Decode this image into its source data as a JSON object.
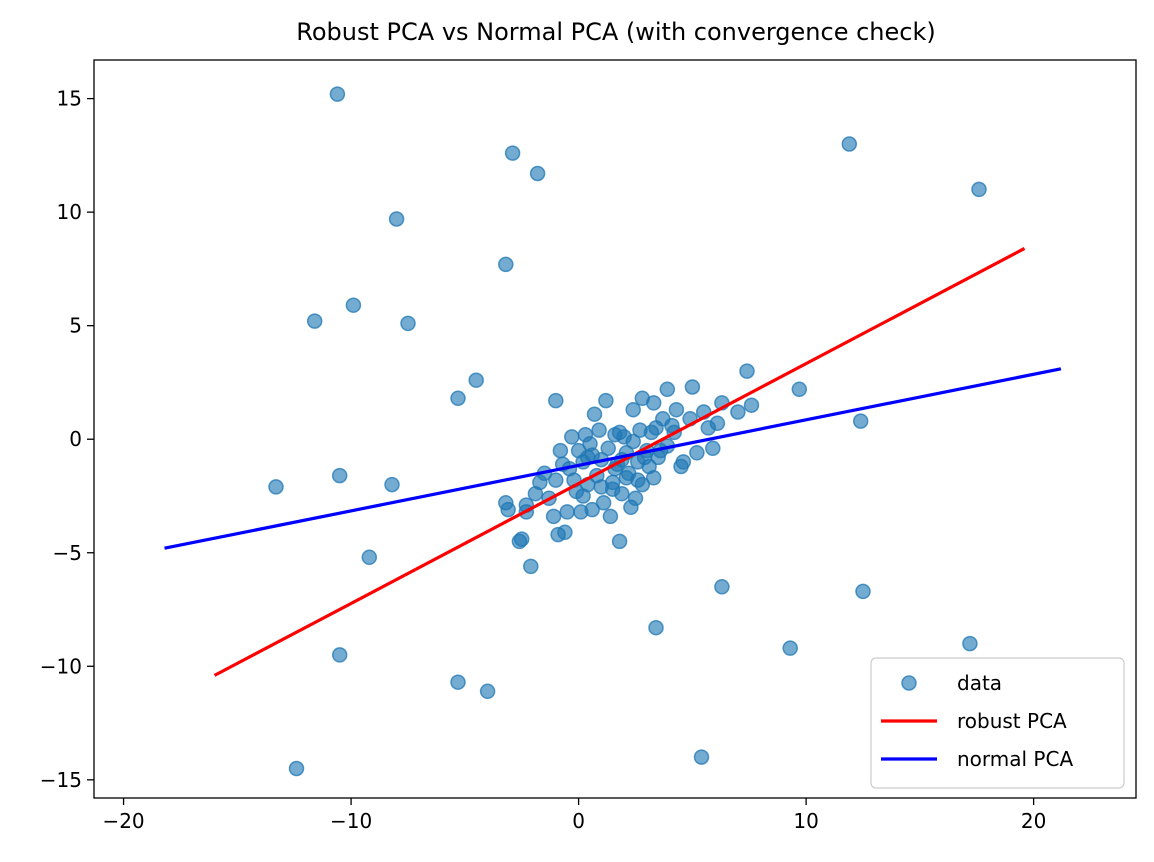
{
  "chart_data": {
    "type": "scatter",
    "title": "Robust PCA vs Normal PCA (with convergence check)",
    "xlabel": "",
    "ylabel": "",
    "xlim": [
      -21.3,
      24.5
    ],
    "ylim": [
      -15.8,
      16.7
    ],
    "xticks": [
      -20,
      -10,
      0,
      10,
      20
    ],
    "yticks": [
      -15,
      -10,
      -5,
      0,
      5,
      10,
      15
    ],
    "xtick_labels": [
      "−20",
      "−10",
      "0",
      "10",
      "20"
    ],
    "ytick_labels": [
      "−15",
      "−10",
      "−5",
      "0",
      "5",
      "10",
      "15"
    ],
    "grid": false,
    "legend_position": "lower-right",
    "series": [
      {
        "name": "data",
        "kind": "scatter",
        "color": "#1f77b4",
        "points": [
          [
            -10.6,
            15.2
          ],
          [
            -2.9,
            12.6
          ],
          [
            -1.8,
            11.7
          ],
          [
            -8.0,
            9.7
          ],
          [
            -3.2,
            7.7
          ],
          [
            11.9,
            13.0
          ],
          [
            17.6,
            11.0
          ],
          [
            -9.9,
            5.9
          ],
          [
            -11.6,
            5.2
          ],
          [
            -7.5,
            5.1
          ],
          [
            -4.5,
            2.6
          ],
          [
            -5.3,
            1.8
          ],
          [
            -1.0,
            1.7
          ],
          [
            -13.3,
            -2.1
          ],
          [
            -10.5,
            -1.6
          ],
          [
            -8.2,
            -2.0
          ],
          [
            -9.2,
            -5.2
          ],
          [
            -10.5,
            -9.5
          ],
          [
            -12.4,
            -14.5
          ],
          [
            -5.3,
            -10.7
          ],
          [
            -4.0,
            -11.1
          ],
          [
            3.4,
            -8.3
          ],
          [
            6.3,
            -6.5
          ],
          [
            5.4,
            -14.0
          ],
          [
            9.3,
            -9.2
          ],
          [
            12.5,
            -6.7
          ],
          [
            17.2,
            -9.0
          ],
          [
            7.4,
            3.0
          ],
          [
            9.7,
            2.2
          ],
          [
            12.4,
            0.8
          ],
          [
            7.6,
            1.5
          ],
          [
            7.0,
            1.2
          ],
          [
            6.3,
            1.6
          ],
          [
            6.1,
            0.7
          ],
          [
            5.9,
            -0.4
          ],
          [
            5.5,
            1.2
          ],
          [
            5.7,
            0.5
          ],
          [
            5.2,
            -0.6
          ],
          [
            4.9,
            0.9
          ],
          [
            5.0,
            2.3
          ],
          [
            4.6,
            -1.0
          ],
          [
            4.5,
            -1.2
          ],
          [
            4.3,
            1.3
          ],
          [
            4.1,
            0.6
          ],
          [
            3.9,
            -0.3
          ],
          [
            3.9,
            2.2
          ],
          [
            3.7,
            0.9
          ],
          [
            3.5,
            -0.8
          ],
          [
            3.3,
            1.6
          ],
          [
            3.2,
            0.3
          ],
          [
            3.1,
            -1.2
          ],
          [
            3.0,
            -0.5
          ],
          [
            2.8,
            1.8
          ],
          [
            2.7,
            0.4
          ],
          [
            2.6,
            -1.8
          ],
          [
            2.5,
            -2.6
          ],
          [
            2.4,
            1.3
          ],
          [
            2.4,
            -0.1
          ],
          [
            2.3,
            -3.0
          ],
          [
            2.2,
            -1.5
          ],
          [
            2.1,
            -0.6
          ],
          [
            2.0,
            0.1
          ],
          [
            1.9,
            -2.4
          ],
          [
            1.8,
            -4.5
          ],
          [
            1.7,
            -1.1
          ],
          [
            1.6,
            0.2
          ],
          [
            1.5,
            -1.9
          ],
          [
            1.4,
            -3.4
          ],
          [
            1.3,
            -0.4
          ],
          [
            1.2,
            1.7
          ],
          [
            1.1,
            -2.8
          ],
          [
            1.0,
            -0.9
          ],
          [
            0.9,
            0.4
          ],
          [
            0.8,
            -1.6
          ],
          [
            0.7,
            1.1
          ],
          [
            0.6,
            -3.1
          ],
          [
            0.5,
            -0.2
          ],
          [
            0.4,
            -2.0
          ],
          [
            0.3,
            0.2
          ],
          [
            0.2,
            -1.0
          ],
          [
            0.1,
            -3.2
          ],
          [
            0.0,
            -0.5
          ],
          [
            -0.1,
            -2.3
          ],
          [
            -0.3,
            0.1
          ],
          [
            -0.4,
            -1.3
          ],
          [
            -0.5,
            -3.2
          ],
          [
            -0.6,
            -4.1
          ],
          [
            -0.8,
            -0.5
          ],
          [
            -0.9,
            -4.2
          ],
          [
            -1.0,
            -1.8
          ],
          [
            -1.1,
            -3.4
          ],
          [
            -1.3,
            -2.6
          ],
          [
            -1.5,
            -1.5
          ],
          [
            -1.7,
            -1.9
          ],
          [
            -1.9,
            -2.4
          ],
          [
            -2.1,
            -5.6
          ],
          [
            -2.3,
            -3.2
          ],
          [
            -2.5,
            -4.4
          ],
          [
            -2.6,
            -4.5
          ],
          [
            -2.3,
            -2.9
          ],
          [
            -3.1,
            -3.1
          ],
          [
            -3.2,
            -2.8
          ],
          [
            -0.7,
            -1.1
          ],
          [
            -0.2,
            -1.8
          ],
          [
            0.6,
            -0.7
          ],
          [
            1.6,
            -1.3
          ],
          [
            2.9,
            -0.8
          ],
          [
            3.6,
            -0.5
          ],
          [
            4.2,
            0.3
          ],
          [
            2.1,
            -1.7
          ],
          [
            1.0,
            -2.1
          ],
          [
            0.2,
            -2.5
          ],
          [
            1.9,
            -0.9
          ],
          [
            2.6,
            -1.0
          ],
          [
            3.3,
            -1.7
          ],
          [
            1.5,
            -2.2
          ],
          [
            0.4,
            -0.8
          ],
          [
            2.8,
            -2.0
          ],
          [
            1.8,
            0.3
          ],
          [
            3.4,
            0.5
          ]
        ]
      },
      {
        "name": "robust PCA",
        "kind": "line",
        "color": "#ff0000",
        "x": [
          -16.0,
          19.6
        ],
        "y": [
          -10.4,
          8.4
        ]
      },
      {
        "name": "normal PCA",
        "kind": "line",
        "color": "#0000ff",
        "x": [
          -18.2,
          21.2
        ],
        "y": [
          -4.8,
          3.1
        ]
      }
    ]
  }
}
